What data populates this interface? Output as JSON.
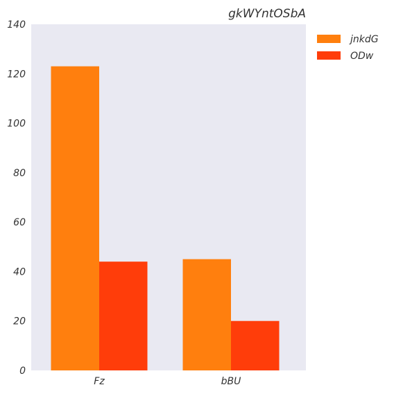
{
  "chart_data": {
    "type": "bar",
    "title": "gkWYntOSbA",
    "xlabel": "",
    "ylabel": "",
    "categories": [
      "Fz",
      "bBU"
    ],
    "series": [
      {
        "name": "jnkdG",
        "values": [
          123,
          45
        ],
        "color": "#ff7f0e"
      },
      {
        "name": "ODw",
        "values": [
          44,
          20
        ],
        "color": "#ff3d0a"
      }
    ],
    "ylim": [
      0,
      140
    ],
    "yticks": [
      0,
      20,
      40,
      60,
      80,
      100,
      120,
      140
    ],
    "grid": false,
    "background": "#e9e9f2",
    "legend_position": "outside-top-right"
  }
}
